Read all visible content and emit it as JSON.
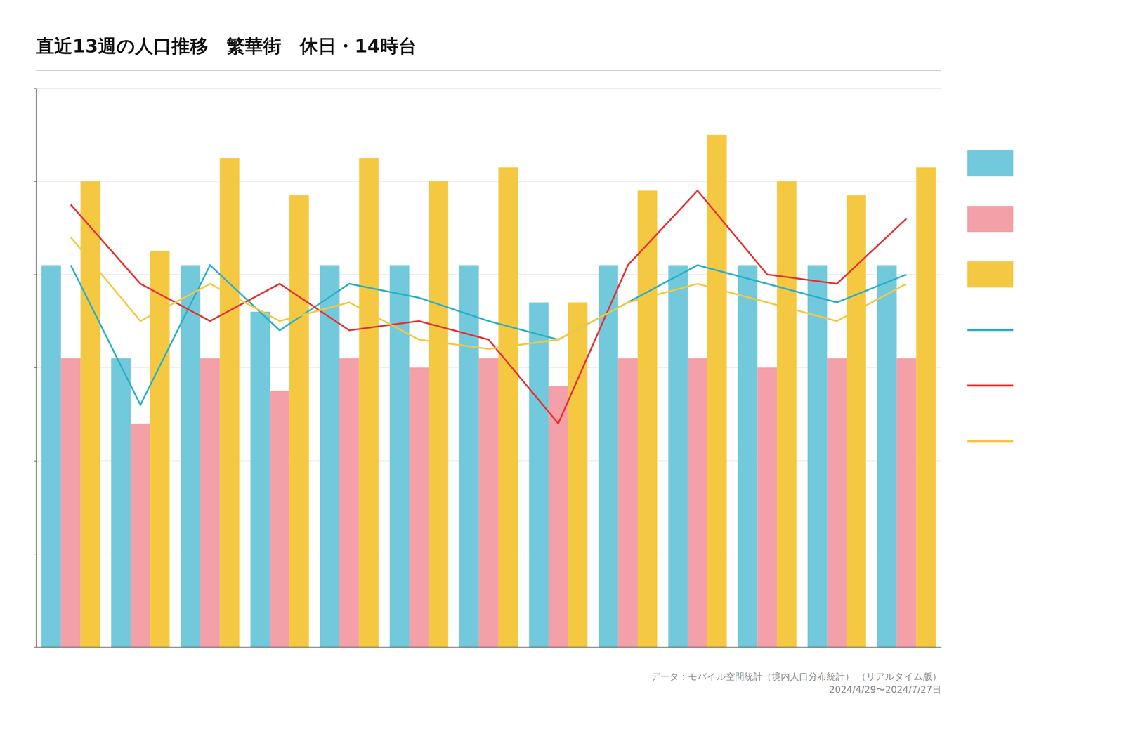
{
  "chart_data": {
    "type": "bar",
    "title": "直近13週の人口推移　繁華街　休日・14時台",
    "categories": [
      null,
      null,
      null,
      null,
      null,
      null,
      null,
      null,
      null,
      null,
      null,
      null,
      null
    ],
    "series": [
      {
        "type": "bar",
        "color": "#72c9db",
        "values": [
          82,
          62,
          82,
          72,
          82,
          82,
          82,
          74,
          82,
          82,
          82,
          82,
          82
        ]
      },
      {
        "type": "bar",
        "color": "#f4a0a8",
        "values": [
          62,
          48,
          62,
          55,
          62,
          60,
          62,
          56,
          62,
          62,
          60,
          62,
          62
        ]
      },
      {
        "type": "bar",
        "color": "#f5c842",
        "values": [
          100,
          85,
          105,
          97,
          105,
          100,
          103,
          74,
          98,
          110,
          100,
          97,
          103
        ]
      },
      {
        "type": "line",
        "color": "#2ab0c8",
        "values": [
          82,
          52,
          82,
          68,
          78,
          75,
          70,
          66,
          74,
          82,
          78,
          74,
          80
        ]
      },
      {
        "type": "line",
        "color": "#e83232",
        "values": [
          95,
          78,
          70,
          78,
          68,
          70,
          66,
          48,
          82,
          98,
          80,
          78,
          92
        ]
      },
      {
        "type": "line",
        "color": "#f5c842",
        "values": [
          88,
          70,
          78,
          70,
          74,
          66,
          64,
          66,
          74,
          78,
          74,
          70,
          78
        ]
      }
    ],
    "ylim": [
      0,
      120
    ],
    "yticks": [
      20,
      40,
      60,
      80,
      100,
      120
    ],
    "grid": true,
    "legend": "right",
    "tick_labels": false,
    "annotations": [
      "データ：モバイル空間統計（境内人口分布統計） （リアルタイム版）\n2024/4/29〜2024/7/27日"
    ]
  }
}
